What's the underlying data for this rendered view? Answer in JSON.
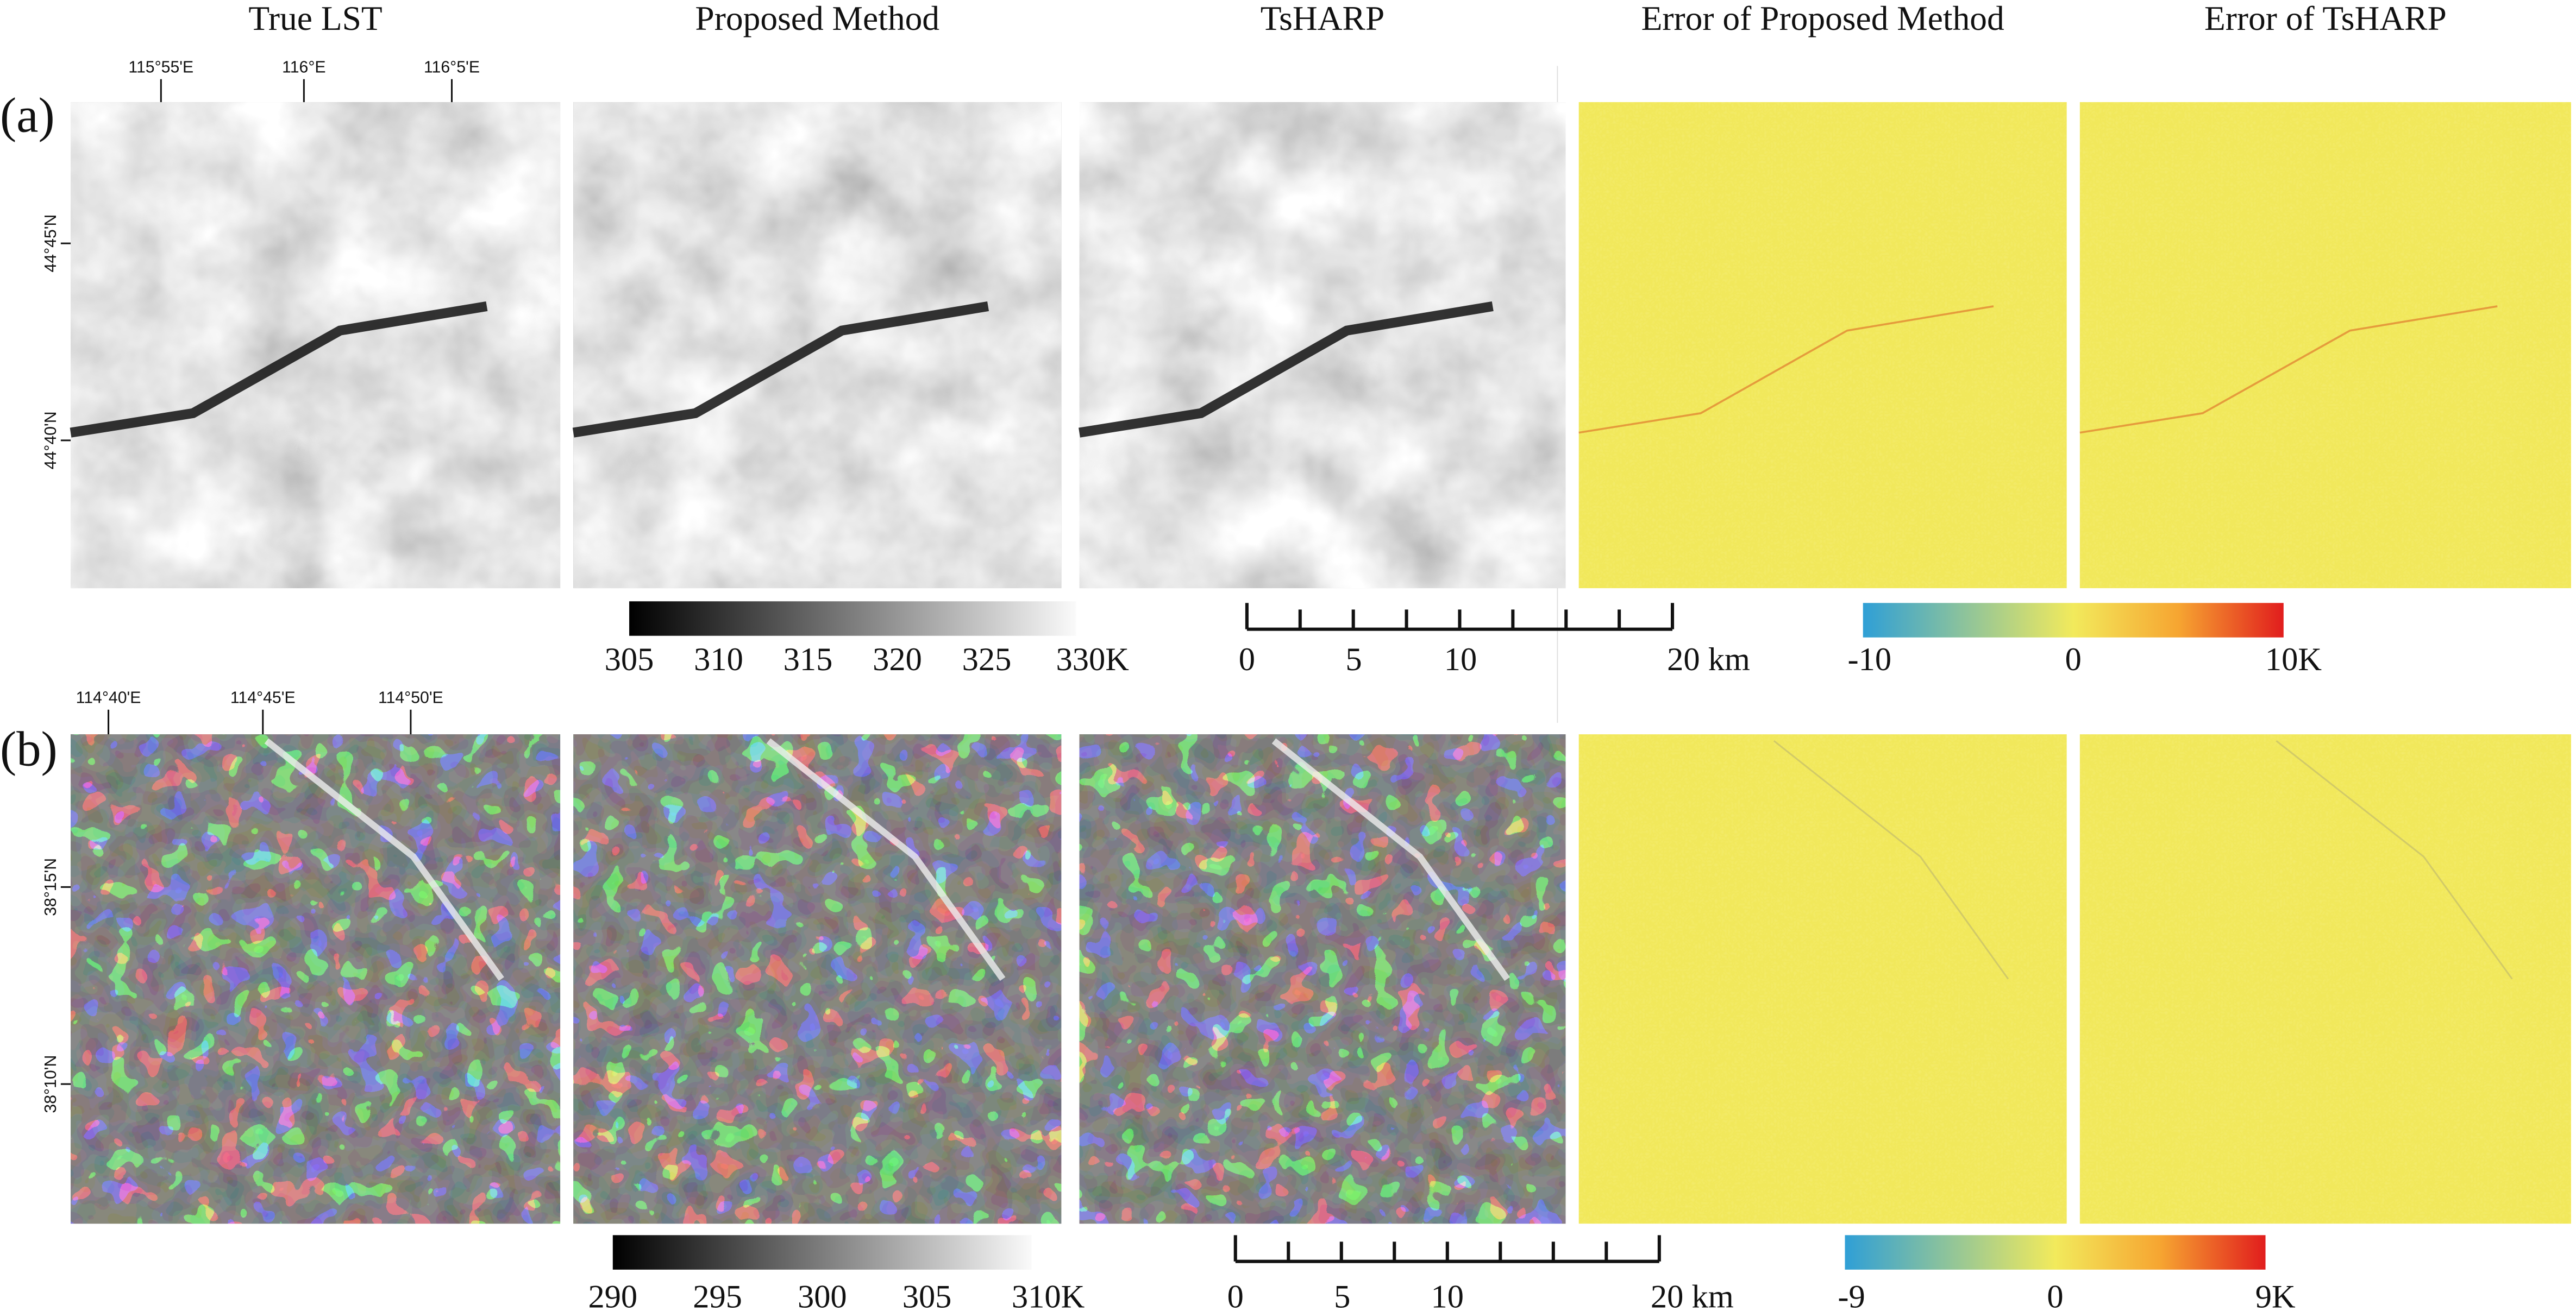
{
  "columns": [
    "True LST",
    "Proposed Method",
    "TsHARP",
    "Error of Proposed Method",
    "Error of TsHARP"
  ],
  "rows": [
    {
      "label": "(a)",
      "lon_labels": [
        "115°55'E",
        "116°E",
        "116°5'E"
      ],
      "lat_labels": [
        "44°45'N",
        "44°40'N"
      ],
      "lst_colorbar": [
        "305",
        "310",
        "315",
        "320",
        "325",
        "330K"
      ],
      "scalebar": [
        "0",
        "5",
        "10",
        "20 km"
      ],
      "error_colorbar": [
        "-10",
        "0",
        "10K"
      ]
    },
    {
      "label": "(b)",
      "lon_labels": [
        "114°40'E",
        "114°45'E",
        "114°50'E"
      ],
      "lat_labels": [
        "38°15'N",
        "38°10'N"
      ],
      "lst_colorbar": [
        "290",
        "295",
        "300",
        "305",
        "310K"
      ],
      "scalebar": [
        "0",
        "5",
        "10",
        "20 km"
      ],
      "error_colorbar": [
        "-9",
        "0",
        "9K"
      ]
    }
  ]
}
